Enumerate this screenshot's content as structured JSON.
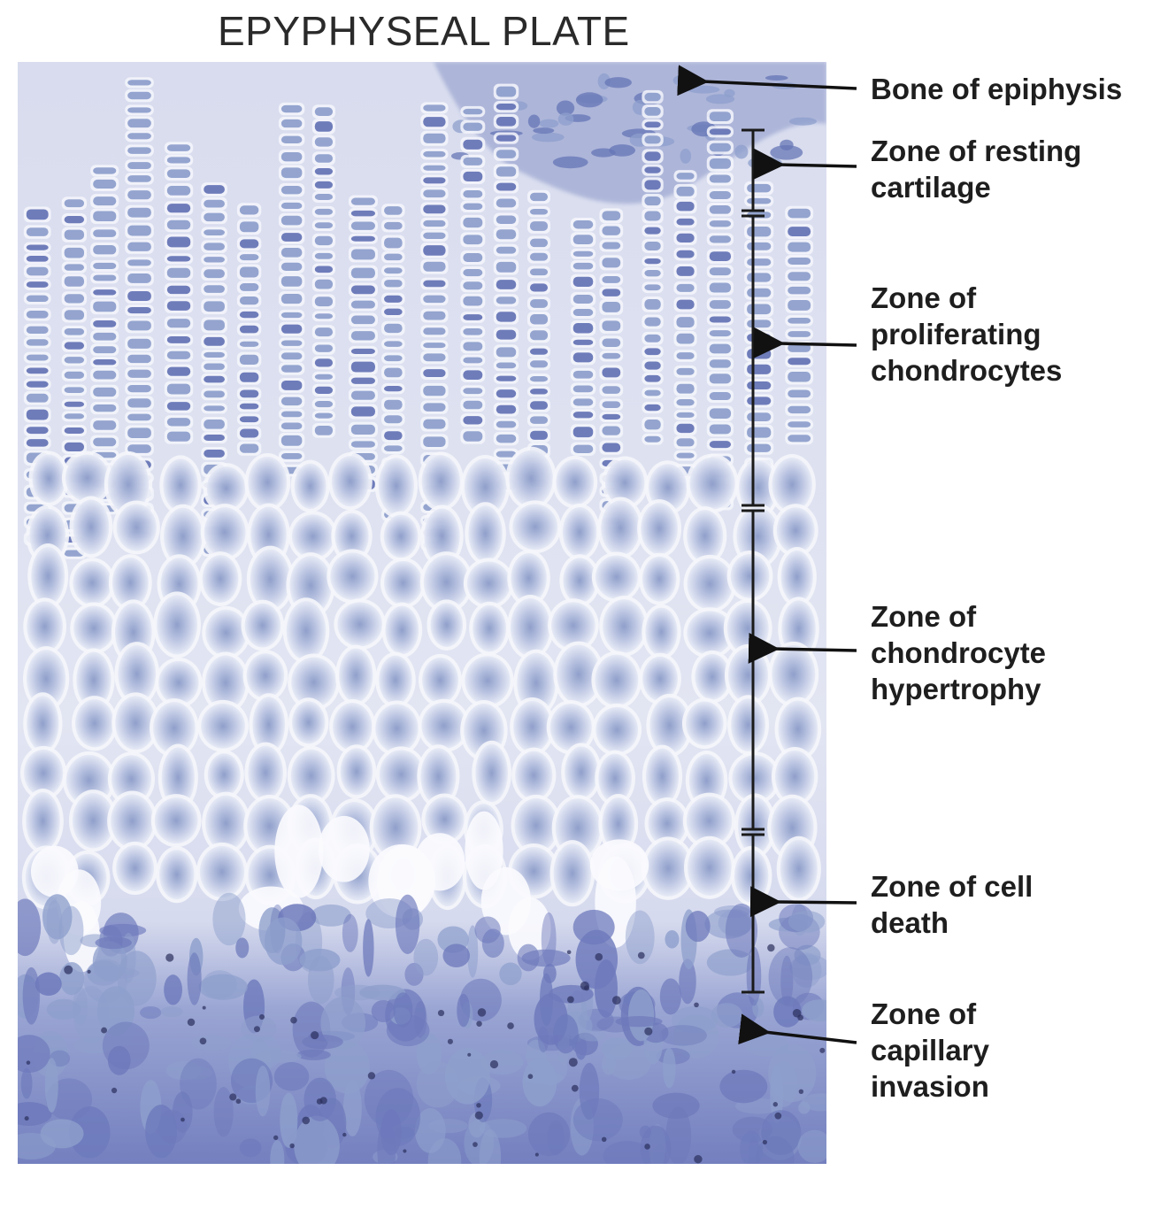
{
  "title": "EPYPHYSEAL PLATE",
  "colors": {
    "matrix": "#dcdff0",
    "cell_fill": "#8e9fcc",
    "cell_dark": "#6675b6",
    "lacuna": "#f5f6fb",
    "bone": "#8a96c8",
    "marrow": "#6d79bb",
    "text": "#1e1e1e"
  },
  "labels": [
    {
      "id": "bone-of-epiphysis",
      "lines": [
        "Bone of epiphysis"
      ]
    },
    {
      "id": "resting-cartilage",
      "lines": [
        "Zone of resting",
        "cartilage"
      ]
    },
    {
      "id": "proliferating",
      "lines": [
        "Zone of",
        "proliferating",
        "chondrocytes"
      ]
    },
    {
      "id": "hypertrophy",
      "lines": [
        "Zone of",
        "chondrocyte",
        "hypertrophy"
      ]
    },
    {
      "id": "cell-death",
      "lines": [
        "Zone of cell",
        "death"
      ]
    },
    {
      "id": "capillary-invasion",
      "lines": [
        "Zone of",
        "capillary",
        "invasion"
      ]
    }
  ]
}
